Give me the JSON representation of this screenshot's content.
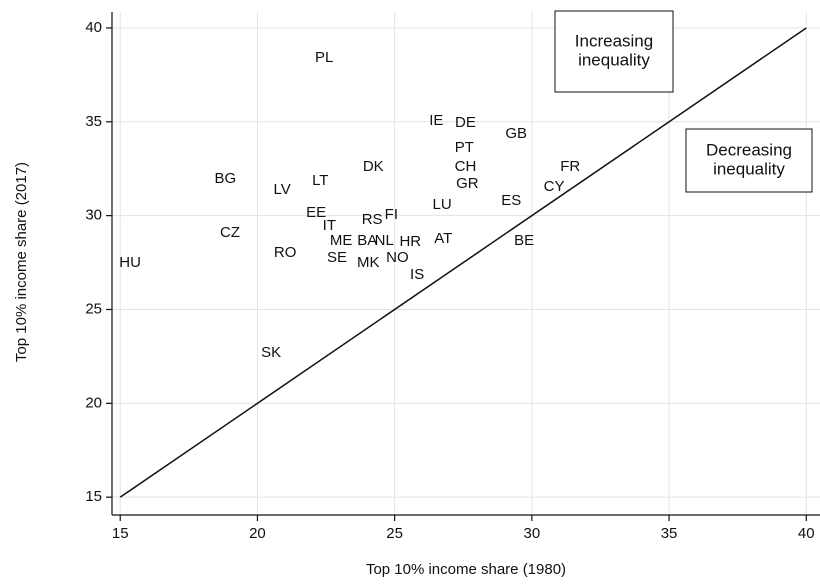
{
  "chart_data": {
    "type": "scatter",
    "x_label": "Top 10% income share (1980)",
    "y_label": "Top 10% income share (2017)",
    "xlim": [
      14.7,
      40.5
    ],
    "ylim": [
      14.05,
      40.85
    ],
    "xticks": [
      15,
      20,
      25,
      30,
      35,
      40
    ],
    "yticks": [
      15,
      20,
      25,
      30,
      35,
      40
    ],
    "grid": true,
    "reference_line": {
      "x": [
        15,
        40
      ],
      "y": [
        15,
        40
      ]
    },
    "annotations": [
      [
        "Increasing",
        "inequality"
      ],
      [
        "Decreasing",
        "inequality"
      ]
    ],
    "points": [
      {
        "label": "HU",
        "x": 15.36,
        "y": 27.47
      },
      {
        "label": "PL",
        "x": 22.43,
        "y": 38.4
      },
      {
        "label": "BG",
        "x": 18.83,
        "y": 31.95
      },
      {
        "label": "CZ",
        "x": 19.0,
        "y": 29.07
      },
      {
        "label": "LV",
        "x": 20.9,
        "y": 31.36
      },
      {
        "label": "LT",
        "x": 22.29,
        "y": 31.84
      },
      {
        "label": "RO",
        "x": 21.01,
        "y": 28.0
      },
      {
        "label": "SK",
        "x": 20.5,
        "y": 22.68
      },
      {
        "label": "EE",
        "x": 22.14,
        "y": 30.14
      },
      {
        "label": "IT",
        "x": 22.62,
        "y": 29.45
      },
      {
        "label": "ME",
        "x": 23.05,
        "y": 28.65
      },
      {
        "label": "BA",
        "x": 24.0,
        "y": 28.65
      },
      {
        "label": "NL",
        "x": 24.62,
        "y": 28.65
      },
      {
        "label": "SE",
        "x": 22.9,
        "y": 27.74
      },
      {
        "label": "MK",
        "x": 24.04,
        "y": 27.47
      },
      {
        "label": "NO",
        "x": 25.1,
        "y": 27.74
      },
      {
        "label": "RS",
        "x": 24.18,
        "y": 29.77
      },
      {
        "label": "FI",
        "x": 24.88,
        "y": 30.03
      },
      {
        "label": "DK",
        "x": 24.22,
        "y": 32.59
      },
      {
        "label": "HR",
        "x": 25.57,
        "y": 28.6
      },
      {
        "label": "IS",
        "x": 25.82,
        "y": 26.83
      },
      {
        "label": "AT",
        "x": 26.77,
        "y": 28.75
      },
      {
        "label": "LU",
        "x": 26.73,
        "y": 30.56
      },
      {
        "label": "IE",
        "x": 26.52,
        "y": 35.04
      },
      {
        "label": "DE",
        "x": 27.58,
        "y": 34.94
      },
      {
        "label": "PT",
        "x": 27.54,
        "y": 33.6
      },
      {
        "label": "CH",
        "x": 27.58,
        "y": 32.59
      },
      {
        "label": "GR",
        "x": 27.65,
        "y": 31.68
      },
      {
        "label": "GB",
        "x": 29.43,
        "y": 34.35
      },
      {
        "label": "ES",
        "x": 29.25,
        "y": 30.78
      },
      {
        "label": "BE",
        "x": 29.72,
        "y": 28.65
      },
      {
        "label": "FR",
        "x": 31.4,
        "y": 32.59
      },
      {
        "label": "CY",
        "x": 30.81,
        "y": 31.52
      }
    ]
  }
}
